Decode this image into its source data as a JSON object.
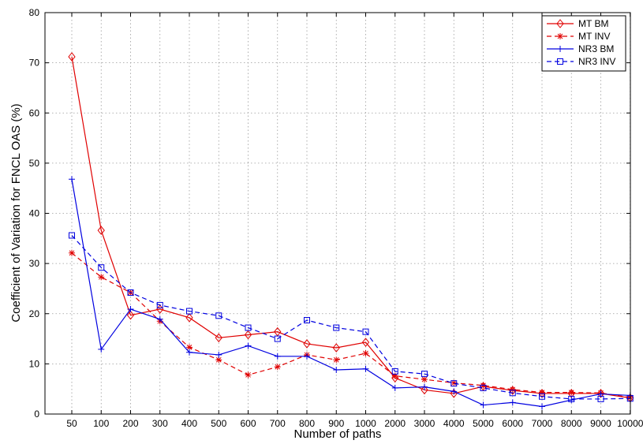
{
  "chart_data": {
    "type": "line",
    "title": "",
    "xlabel": "Number of paths",
    "ylabel": "Coefficient of Variation for FNCL OAS (%)",
    "categories": [
      "50",
      "100",
      "200",
      "300",
      "400",
      "500",
      "600",
      "700",
      "800",
      "900",
      "1000",
      "2000",
      "3000",
      "4000",
      "5000",
      "6000",
      "7000",
      "8000",
      "9000",
      "10000"
    ],
    "ylim": [
      0,
      80
    ],
    "yticks": [
      "0",
      "10",
      "20",
      "30",
      "40",
      "50",
      "60",
      "70",
      "80"
    ],
    "grid": true,
    "legend_position": "top-right",
    "series": [
      {
        "name": "MT BM",
        "color": "#e00000",
        "dash": "solid",
        "marker": "diamond",
        "values": [
          71.2,
          36.6,
          19.7,
          20.9,
          19.2,
          15.2,
          15.8,
          16.4,
          14.0,
          13.2,
          14.3,
          7.2,
          4.8,
          4.1,
          5.5,
          4.7,
          4.1,
          4.1,
          4.1,
          3.2
        ]
      },
      {
        "name": "MT INV",
        "color": "#e00000",
        "dash": "dashed",
        "marker": "asterisk",
        "values": [
          32.1,
          27.3,
          24.2,
          18.5,
          13.3,
          10.8,
          7.8,
          9.4,
          11.8,
          10.8,
          12.1,
          7.6,
          6.9,
          6.2,
          5.7,
          4.9,
          4.3,
          4.3,
          4.2,
          3.3
        ]
      },
      {
        "name": "NR3 BM",
        "color": "#0000e0",
        "dash": "solid",
        "marker": "plus",
        "values": [
          46.8,
          12.9,
          20.9,
          18.9,
          12.3,
          11.8,
          13.6,
          11.5,
          11.5,
          8.8,
          9.0,
          5.2,
          5.4,
          4.5,
          1.8,
          2.3,
          1.5,
          2.8,
          4.0,
          3.7
        ]
      },
      {
        "name": "NR3 INV",
        "color": "#0000e0",
        "dash": "dashed",
        "marker": "square",
        "values": [
          35.6,
          29.2,
          24.2,
          21.7,
          20.5,
          19.6,
          17.2,
          15.0,
          18.7,
          17.2,
          16.4,
          8.5,
          8.0,
          6.1,
          5.2,
          4.2,
          3.5,
          3.0,
          3.0,
          3.1
        ]
      }
    ]
  }
}
